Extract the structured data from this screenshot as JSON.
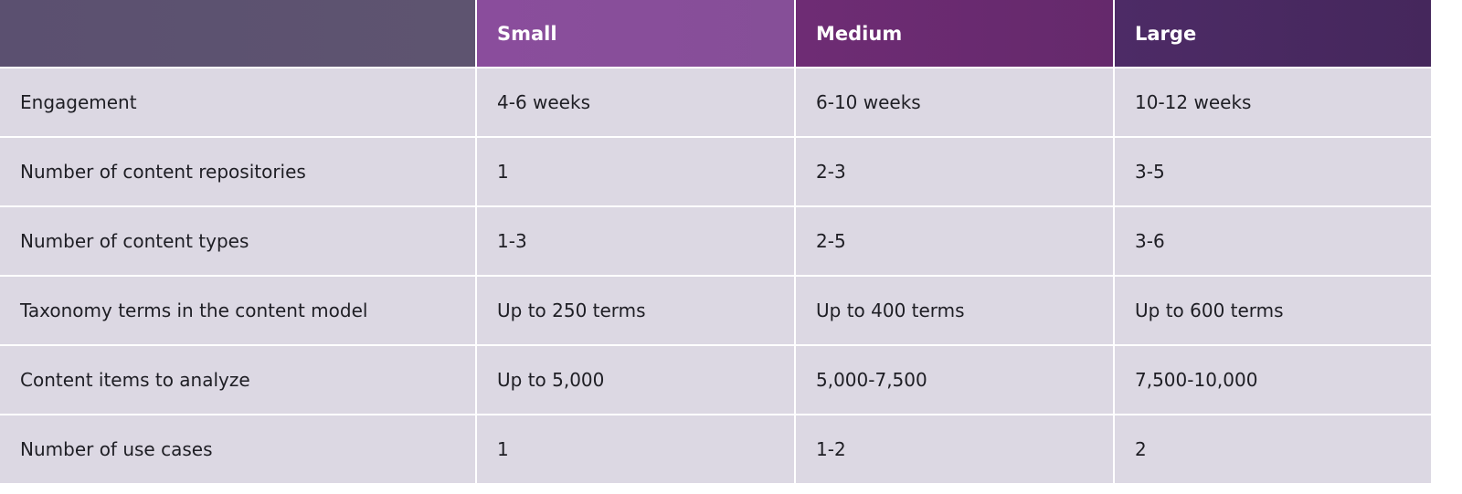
{
  "table": {
    "columns": [
      "Small",
      "Medium",
      "Large"
    ],
    "rows": [
      [
        "Engagement",
        "4-6 weeks",
        "6-10 weeks",
        "10-12 weeks"
      ],
      [
        "Number of content repositories",
        "1",
        "2-3",
        "3-5"
      ],
      [
        "Number of content types",
        "1-3",
        "2-5",
        "3-6"
      ],
      [
        "Taxonomy terms in the content model",
        "Up to 250 terms",
        "Up to 400 terms",
        "Up to 600 terms"
      ],
      [
        "Content items to analyze",
        "Up to 5,000",
        "5,000-7,500",
        "7,500-10,000"
      ],
      [
        "Number of use cases",
        "1",
        "1-2",
        "2"
      ]
    ]
  }
}
